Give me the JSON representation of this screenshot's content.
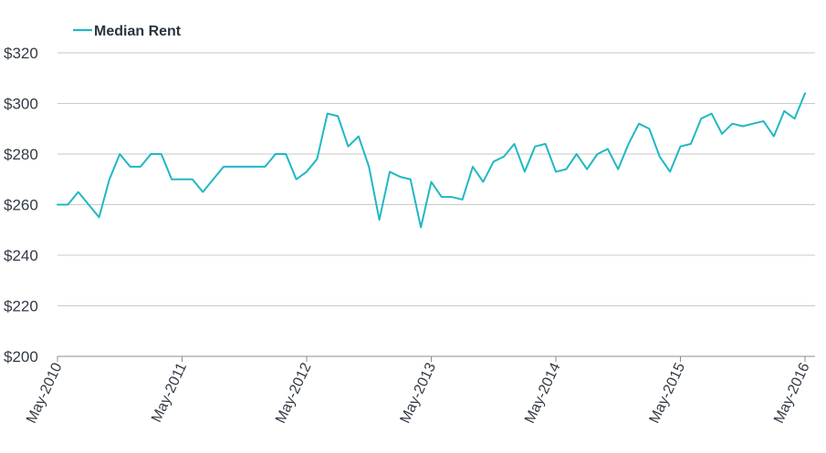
{
  "chart_data": {
    "type": "line",
    "title": "",
    "xlabel": "",
    "ylabel": "",
    "ylim": [
      200,
      320
    ],
    "yticks": [
      "$200",
      "$220",
      "$240",
      "$260",
      "$280",
      "$300",
      "$320"
    ],
    "ytick_values": [
      200,
      220,
      240,
      260,
      280,
      300,
      320
    ],
    "xticks": [
      "May-2010",
      "May-2011",
      "May-2012",
      "May-2013",
      "May-2014",
      "May-2015",
      "May-2016"
    ],
    "grid": "horizontal",
    "legend": "top-left",
    "colors": {
      "line": "#1fb8c4",
      "grid": "#c9c9c9",
      "axis": "#8c8c8c"
    },
    "series": [
      {
        "name": "Median Rent",
        "x": [
          "May-2010",
          "Jun-2010",
          "Jul-2010",
          "Aug-2010",
          "Sep-2010",
          "Oct-2010",
          "Nov-2010",
          "Dec-2010",
          "Jan-2011",
          "Feb-2011",
          "Mar-2011",
          "Apr-2011",
          "May-2011",
          "Jun-2011",
          "Jul-2011",
          "Aug-2011",
          "Sep-2011",
          "Oct-2011",
          "Nov-2011",
          "Dec-2011",
          "Jan-2012",
          "Feb-2012",
          "Mar-2012",
          "Apr-2012",
          "May-2012",
          "Jun-2012",
          "Jul-2012",
          "Aug-2012",
          "Sep-2012",
          "Oct-2012",
          "Nov-2012",
          "Dec-2012",
          "Jan-2013",
          "Feb-2013",
          "Mar-2013",
          "Apr-2013",
          "May-2013",
          "Jun-2013",
          "Jul-2013",
          "Aug-2013",
          "Sep-2013",
          "Oct-2013",
          "Nov-2013",
          "Dec-2013",
          "Jan-2014",
          "Feb-2014",
          "Mar-2014",
          "Apr-2014",
          "May-2014",
          "Jun-2014",
          "Jul-2014",
          "Aug-2014",
          "Sep-2014",
          "Oct-2014",
          "Nov-2014",
          "Dec-2014",
          "Jan-2015",
          "Feb-2015",
          "Mar-2015",
          "Apr-2015",
          "May-2015",
          "Jun-2015",
          "Jul-2015",
          "Aug-2015",
          "Sep-2015",
          "Oct-2015",
          "Nov-2015",
          "Dec-2015",
          "Jan-2016",
          "Feb-2016",
          "Mar-2016",
          "Apr-2016",
          "May-2016",
          "Jun-2016"
        ],
        "values": [
          260,
          260,
          265,
          260,
          255,
          270,
          280,
          275,
          275,
          280,
          280,
          270,
          270,
          270,
          265,
          270,
          275,
          275,
          275,
          275,
          275,
          280,
          280,
          270,
          273,
          278,
          296,
          295,
          283,
          287,
          275,
          254,
          273,
          271,
          270,
          251,
          269,
          263,
          263,
          262,
          275,
          269,
          277,
          279,
          284,
          273,
          283,
          284,
          273,
          274,
          280,
          274,
          280,
          282,
          274,
          284,
          292,
          290,
          279,
          273,
          283,
          284,
          294,
          296,
          288,
          292,
          291,
          292,
          293,
          287,
          297,
          294,
          304,
          null
        ]
      }
    ]
  }
}
